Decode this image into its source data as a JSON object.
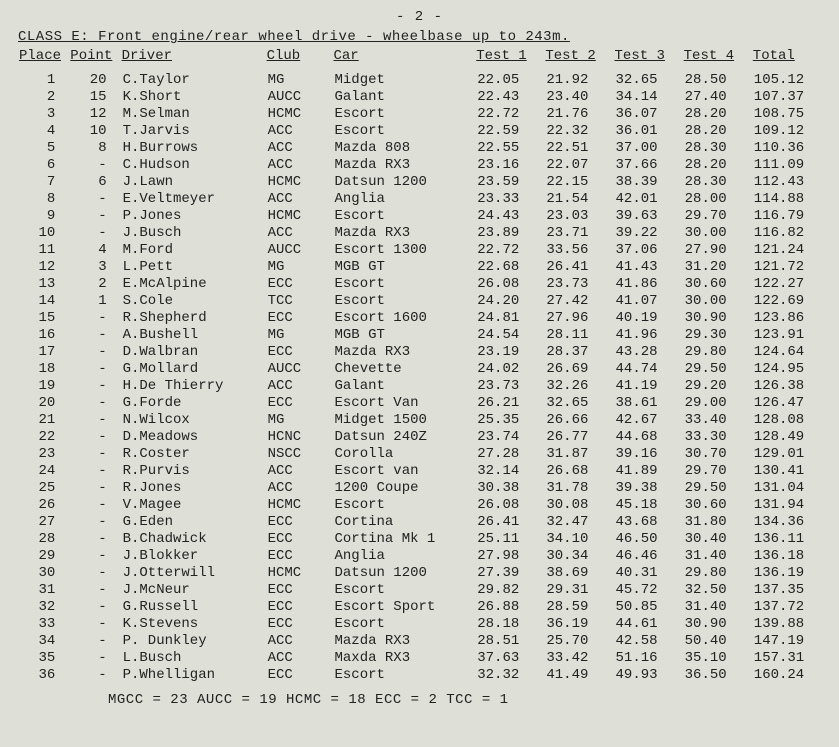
{
  "page_number": "- 2 -",
  "class_title": "CLASS E: Front engine/rear wheel drive - wheelbase up to 243m.",
  "columns": [
    "Place",
    "Point",
    "Driver",
    "Club",
    "Car",
    "Test 1",
    "Test 2",
    "Test 3",
    "Test 4",
    "Total"
  ],
  "rows": [
    [
      "1",
      "20",
      "C.Taylor",
      "MG",
      "Midget",
      "22.05",
      "21.92",
      "32.65",
      "28.50",
      "105.12"
    ],
    [
      "2",
      "15",
      "K.Short",
      "AUCC",
      "Galant",
      "22.43",
      "23.40",
      "34.14",
      "27.40",
      "107.37"
    ],
    [
      "3",
      "12",
      "M.Selman",
      "HCMC",
      "Escort",
      "22.72",
      "21.76",
      "36.07",
      "28.20",
      "108.75"
    ],
    [
      "4",
      "10",
      "T.Jarvis",
      "ACC",
      "Escort",
      "22.59",
      "22.32",
      "36.01",
      "28.20",
      "109.12"
    ],
    [
      "5",
      "8",
      "H.Burrows",
      "ACC",
      "Mazda 808",
      "22.55",
      "22.51",
      "37.00",
      "28.30",
      "110.36"
    ],
    [
      "6",
      "-",
      "C.Hudson",
      "ACC",
      "Mazda RX3",
      "23.16",
      "22.07",
      "37.66",
      "28.20",
      "111.09"
    ],
    [
      "7",
      "6",
      "J.Lawn",
      "HCMC",
      "Datsun 1200",
      "23.59",
      "22.15",
      "38.39",
      "28.30",
      "112.43"
    ],
    [
      "8",
      "-",
      "E.Veltmeyer",
      "ACC",
      "Anglia",
      "23.33",
      "21.54",
      "42.01",
      "28.00",
      "114.88"
    ],
    [
      "9",
      "-",
      "P.Jones",
      "HCMC",
      "Escort",
      "24.43",
      "23.03",
      "39.63",
      "29.70",
      "116.79"
    ],
    [
      "10",
      "-",
      "J.Busch",
      "ACC",
      "Mazda RX3",
      "23.89",
      "23.71",
      "39.22",
      "30.00",
      "116.82"
    ],
    [
      "11",
      "4",
      "M.Ford",
      "AUCC",
      "Escort 1300",
      "22.72",
      "33.56",
      "37.06",
      "27.90",
      "121.24"
    ],
    [
      "12",
      "3",
      "L.Pett",
      "MG",
      "MGB GT",
      "22.68",
      "26.41",
      "41.43",
      "31.20",
      "121.72"
    ],
    [
      "13",
      "2",
      "E.McAlpine",
      "ECC",
      "Escort",
      "26.08",
      "23.73",
      "41.86",
      "30.60",
      "122.27"
    ],
    [
      "14",
      "1",
      "S.Cole",
      "TCC",
      "Escort",
      "24.20",
      "27.42",
      "41.07",
      "30.00",
      "122.69"
    ],
    [
      "15",
      "-",
      "R.Shepherd",
      "ECC",
      "Escort 1600",
      "24.81",
      "27.96",
      "40.19",
      "30.90",
      "123.86"
    ],
    [
      "16",
      "-",
      "A.Bushell",
      "MG",
      "MGB GT",
      "24.54",
      "28.11",
      "41.96",
      "29.30",
      "123.91"
    ],
    [
      "17",
      "-",
      "D.Walbran",
      "ECC",
      "Mazda RX3",
      "23.19",
      "28.37",
      "43.28",
      "29.80",
      "124.64"
    ],
    [
      "18",
      "-",
      "G.Mollard",
      "AUCC",
      "Chevette",
      "24.02",
      "26.69",
      "44.74",
      "29.50",
      "124.95"
    ],
    [
      "19",
      "-",
      "H.De Thierry",
      "ACC",
      "Galant",
      "23.73",
      "32.26",
      "41.19",
      "29.20",
      "126.38"
    ],
    [
      "20",
      "-",
      "G.Forde",
      "ECC",
      "Escort Van",
      "26.21",
      "32.65",
      "38.61",
      "29.00",
      "126.47"
    ],
    [
      "21",
      "-",
      "N.Wilcox",
      "MG",
      "Midget 1500",
      "25.35",
      "26.66",
      "42.67",
      "33.40",
      "128.08"
    ],
    [
      "22",
      "-",
      "D.Meadows",
      "HCNC",
      "Datsun 240Z",
      "23.74",
      "26.77",
      "44.68",
      "33.30",
      "128.49"
    ],
    [
      "23",
      "-",
      "R.Coster",
      "NSCC",
      "Corolla",
      "27.28",
      "31.87",
      "39.16",
      "30.70",
      "129.01"
    ],
    [
      "24",
      "-",
      "R.Purvis",
      "ACC",
      "Escort van",
      "32.14",
      "26.68",
      "41.89",
      "29.70",
      "130.41"
    ],
    [
      "25",
      "-",
      "R.Jones",
      "ACC",
      "1200 Coupe",
      "30.38",
      "31.78",
      "39.38",
      "29.50",
      "131.04"
    ],
    [
      "26",
      "-",
      "V.Magee",
      "HCMC",
      "Escort",
      "26.08",
      "30.08",
      "45.18",
      "30.60",
      "131.94"
    ],
    [
      "27",
      "-",
      "G.Eden",
      "ECC",
      "Cortina",
      "26.41",
      "32.47",
      "43.68",
      "31.80",
      "134.36"
    ],
    [
      "28",
      "-",
      "B.Chadwick",
      "ECC",
      "Cortina Mk 1",
      "25.11",
      "34.10",
      "46.50",
      "30.40",
      "136.11"
    ],
    [
      "29",
      "-",
      "J.Blokker",
      "ECC",
      "Anglia",
      "27.98",
      "30.34",
      "46.46",
      "31.40",
      "136.18"
    ],
    [
      "30",
      "-",
      "J.Otterwill",
      "HCMC",
      "Datsun 1200",
      "27.39",
      "38.69",
      "40.31",
      "29.80",
      "136.19"
    ],
    [
      "31",
      "-",
      "J.McNeur",
      "ECC",
      "Escort",
      "29.82",
      "29.31",
      "45.72",
      "32.50",
      "137.35"
    ],
    [
      "32",
      "-",
      "G.Russell",
      "ECC",
      "Escort Sport",
      "26.88",
      "28.59",
      "50.85",
      "31.40",
      "137.72"
    ],
    [
      "33",
      "-",
      "K.Stevens",
      "ECC",
      "Escort",
      "28.18",
      "36.19",
      "44.61",
      "30.90",
      "139.88"
    ],
    [
      "34",
      "-",
      "P. Dunkley",
      "ACC",
      "Mazda RX3",
      "28.51",
      "25.70",
      "42.58",
      "50.40",
      "147.19"
    ],
    [
      "35",
      "-",
      "L.Busch",
      "ACC",
      "Maxda RX3",
      "37.63",
      "33.42",
      "51.16",
      "35.10",
      "157.31"
    ],
    [
      "36",
      "-",
      "P.Whelligan",
      "ECC",
      "Escort",
      "32.32",
      "41.49",
      "49.93",
      "36.50",
      "160.24"
    ]
  ],
  "footer": "MGCC = 23    AUCC = 19    HCMC = 18    ECC = 2    TCC = 1"
}
